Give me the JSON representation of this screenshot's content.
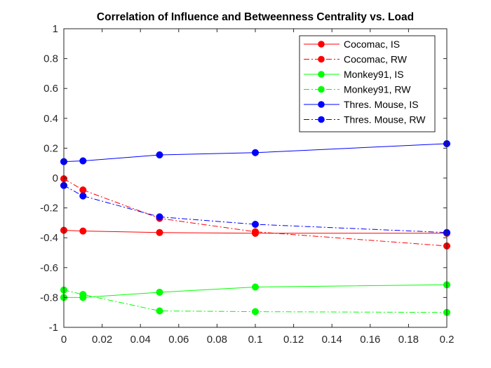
{
  "chart_data": {
    "type": "line",
    "title": "Correlation of Influence and Betweenness Centrality vs. Load",
    "xlabel": "",
    "ylabel": "",
    "xlim": [
      0,
      0.2
    ],
    "ylim": [
      -1,
      1
    ],
    "x_ticks": [
      0,
      0.02,
      0.04,
      0.06,
      0.08,
      0.1,
      0.12,
      0.14,
      0.16,
      0.18,
      0.2
    ],
    "x_tick_labels": [
      "0",
      "0.02",
      "0.04",
      "0.06",
      "0.08",
      "0.1",
      "0.12",
      "0.14",
      "0.16",
      "0.18",
      "0.2"
    ],
    "y_ticks": [
      -1,
      -0.8,
      -0.6,
      -0.4,
      -0.2,
      0,
      0.2,
      0.4,
      0.6,
      0.8,
      1
    ],
    "y_tick_labels": [
      "-1",
      "-0.8",
      "-0.6",
      "-0.4",
      "-0.2",
      "0",
      "0.2",
      "0.4",
      "0.6",
      "0.8",
      "1"
    ],
    "grid": false,
    "legend_position": "top-right",
    "x": [
      0,
      0.01,
      0.05,
      0.1,
      0.2
    ],
    "series": [
      {
        "name": "Cocomac, IS",
        "color": "#ff0000",
        "style": "solid",
        "values": [
          -0.35,
          -0.355,
          -0.365,
          -0.37,
          -0.37
        ]
      },
      {
        "name": "Cocomac, RW",
        "color": "#ff0000",
        "style": "dashdot",
        "values": [
          -0.005,
          -0.08,
          -0.27,
          -0.36,
          -0.455
        ]
      },
      {
        "name": "Monkey91, IS",
        "color": "#00ff00",
        "style": "solid",
        "values": [
          -0.8,
          -0.8,
          -0.765,
          -0.73,
          -0.715
        ]
      },
      {
        "name": "Monkey91, RW",
        "color": "#00ff00",
        "style": "dashdot",
        "values": [
          -0.75,
          -0.78,
          -0.89,
          -0.895,
          -0.9
        ]
      },
      {
        "name": "Thres. Mouse, IS",
        "color": "#0000ff",
        "style": "solid",
        "values": [
          0.11,
          0.115,
          0.155,
          0.17,
          0.23
        ]
      },
      {
        "name": "Thres. Mouse, RW",
        "color": "#0000ff",
        "style": "dashdot",
        "values": [
          -0.05,
          -0.12,
          -0.26,
          -0.31,
          -0.365
        ]
      }
    ]
  }
}
